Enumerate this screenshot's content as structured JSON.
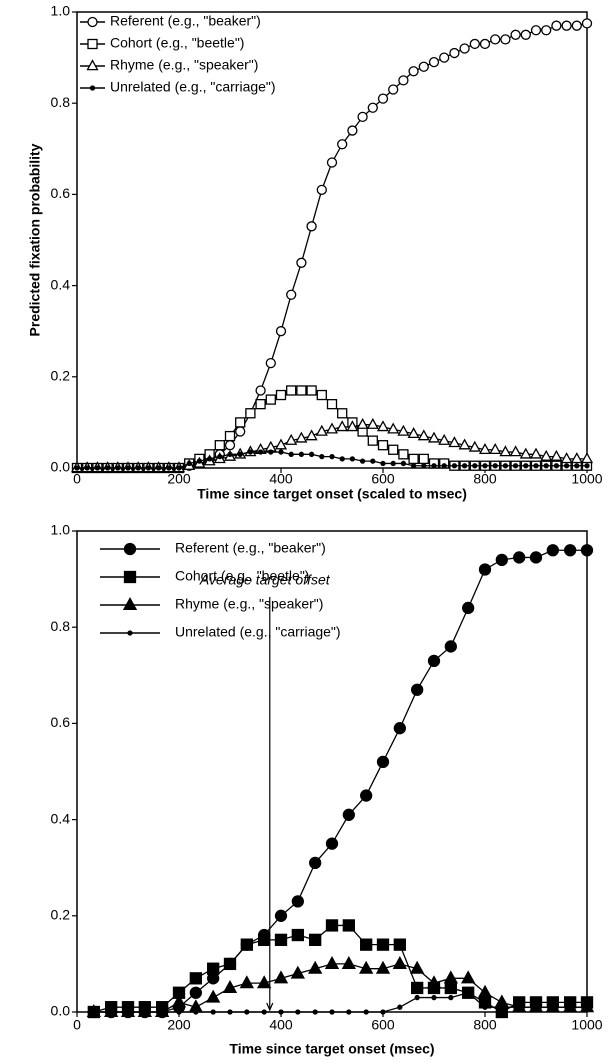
{
  "chart_data": [
    {
      "type": "line",
      "x_label": "Time since target onset (scaled to msec)",
      "y_label": "Predicted fixation probability",
      "marker_fill": "none",
      "xlim": [
        0,
        1000
      ],
      "xticks": [
        0,
        200,
        400,
        600,
        800,
        1000
      ],
      "ylim": [
        0,
        1
      ],
      "yticks": [
        {
          "value": 0,
          "label": "0.0"
        },
        0.2,
        0.4,
        0.6,
        0.8,
        {
          "value": 1,
          "label": "1.0"
        }
      ],
      "legend": "upper left",
      "x": [
        0,
        20,
        40,
        60,
        80,
        100,
        120,
        140,
        160,
        180,
        200,
        220,
        240,
        260,
        280,
        300,
        320,
        340,
        360,
        380,
        400,
        420,
        440,
        460,
        480,
        500,
        520,
        540,
        560,
        580,
        600,
        620,
        640,
        660,
        680,
        700,
        720,
        740,
        760,
        780,
        800,
        820,
        840,
        860,
        880,
        900,
        920,
        940,
        960,
        980,
        1000
      ],
      "series": [
        {
          "name": "Referent (e.g., \"beaker\")",
          "color": "#000000",
          "marker": "circle",
          "values": [
            0,
            0,
            0,
            0,
            0,
            0,
            0,
            0,
            0,
            0,
            0,
            0.005,
            0.01,
            0.02,
            0.03,
            0.05,
            0.08,
            0.12,
            0.17,
            0.23,
            0.3,
            0.38,
            0.45,
            0.53,
            0.61,
            0.67,
            0.71,
            0.74,
            0.77,
            0.79,
            0.81,
            0.83,
            0.85,
            0.87,
            0.88,
            0.89,
            0.9,
            0.91,
            0.92,
            0.93,
            0.93,
            0.94,
            0.94,
            0.95,
            0.95,
            0.96,
            0.96,
            0.97,
            0.97,
            0.97,
            0.975
          ]
        },
        {
          "name": "Cohort (e.g., \"beetle\")",
          "color": "#000000",
          "marker": "square",
          "values": [
            0,
            0,
            0,
            0,
            0,
            0,
            0,
            0,
            0,
            0,
            0,
            0.01,
            0.02,
            0.03,
            0.05,
            0.07,
            0.1,
            0.12,
            0.14,
            0.15,
            0.16,
            0.17,
            0.17,
            0.17,
            0.16,
            0.14,
            0.12,
            0.1,
            0.08,
            0.06,
            0.05,
            0.04,
            0.03,
            0.02,
            0.02,
            0.01,
            0.01,
            0.005,
            0.005,
            0.005,
            0.005,
            0.005,
            0.005,
            0.005,
            0.005,
            0.005,
            0.005,
            0.005,
            0.005,
            0.005,
            0.005
          ]
        },
        {
          "name": "Rhyme (e.g., \"speaker\")",
          "color": "#000000",
          "marker": "triangle",
          "values": [
            0,
            0,
            0,
            0,
            0,
            0,
            0,
            0,
            0,
            0,
            0,
            0.005,
            0.01,
            0.015,
            0.02,
            0.025,
            0.03,
            0.035,
            0.04,
            0.045,
            0.05,
            0.06,
            0.065,
            0.07,
            0.08,
            0.085,
            0.09,
            0.09,
            0.095,
            0.095,
            0.09,
            0.085,
            0.08,
            0.075,
            0.07,
            0.065,
            0.06,
            0.055,
            0.05,
            0.045,
            0.04,
            0.04,
            0.035,
            0.035,
            0.03,
            0.03,
            0.025,
            0.025,
            0.02,
            0.02,
            0.02
          ]
        },
        {
          "name": "Unrelated (e.g., \"carriage\")",
          "color": "#000000",
          "marker": "dot",
          "values": [
            0,
            0,
            0,
            0,
            0,
            0,
            0,
            0,
            0,
            0,
            0,
            0.01,
            0.015,
            0.02,
            0.025,
            0.03,
            0.03,
            0.035,
            0.035,
            0.035,
            0.035,
            0.03,
            0.03,
            0.03,
            0.025,
            0.025,
            0.02,
            0.02,
            0.015,
            0.015,
            0.01,
            0.01,
            0.01,
            0.005,
            0.005,
            0.005,
            0.005,
            0.005,
            0.005,
            0.005,
            0.005,
            0.005,
            0.005,
            0.005,
            0.005,
            0.005,
            0.005,
            0.005,
            0.005,
            0.005,
            0.005
          ]
        }
      ]
    },
    {
      "type": "line",
      "x_label": "Time since target onset (msec)",
      "marker_fill": "#000000",
      "xlim": [
        0,
        1000
      ],
      "xticks": [
        0,
        200,
        400,
        600,
        800,
        1000
      ],
      "ylim": [
        0,
        1
      ],
      "yticks": [
        {
          "value": 0,
          "label": "0.0"
        },
        0.2,
        0.4,
        0.6,
        0.8,
        {
          "value": 1,
          "label": "1.0"
        }
      ],
      "legend": "upper left",
      "annotations": [
        {
          "text": "Average target offset",
          "x": 378
        }
      ],
      "x": [
        33,
        67,
        100,
        133,
        167,
        200,
        233,
        267,
        300,
        333,
        367,
        400,
        433,
        467,
        500,
        533,
        567,
        600,
        633,
        667,
        700,
        733,
        767,
        800,
        833,
        867,
        900,
        933,
        967,
        1000
      ],
      "series": [
        {
          "name": "Referent (e.g., \"beaker\")",
          "color": "#000000",
          "marker": "circle",
          "values": [
            0,
            0,
            0,
            0,
            0,
            0.01,
            0.04,
            0.07,
            0.1,
            0.14,
            0.16,
            0.2,
            0.23,
            0.31,
            0.35,
            0.41,
            0.45,
            0.52,
            0.59,
            0.67,
            0.73,
            0.76,
            0.84,
            0.92,
            0.94,
            0.945,
            0.945,
            0.96,
            0.96,
            0.96
          ]
        },
        {
          "name": "Cohort (e.g., \"beetle\")",
          "color": "#000000",
          "marker": "square",
          "values": [
            0,
            0.01,
            0.01,
            0.01,
            0.01,
            0.04,
            0.07,
            0.09,
            0.1,
            0.14,
            0.15,
            0.15,
            0.16,
            0.15,
            0.18,
            0.18,
            0.14,
            0.14,
            0.14,
            0.05,
            0.05,
            0.05,
            0.04,
            0.02,
            0,
            0.02,
            0.02,
            0.02,
            0.02,
            0.02
          ]
        },
        {
          "name": "Rhyme (e.g., \"speaker\")",
          "color": "#000000",
          "marker": "triangle",
          "values": [
            0,
            0,
            0,
            0,
            0,
            0.02,
            0.01,
            0.03,
            0.05,
            0.06,
            0.06,
            0.07,
            0.08,
            0.09,
            0.1,
            0.1,
            0.09,
            0.09,
            0.1,
            0.09,
            0.06,
            0.07,
            0.07,
            0.04,
            0.02,
            0.01,
            0.01,
            0.01,
            0.01,
            0.01
          ]
        },
        {
          "name": "Unrelated (e.g., \"carriage\")",
          "color": "#000000",
          "marker": "dot",
          "values": [
            0,
            0,
            0,
            0,
            0,
            0,
            0,
            0,
            0,
            0,
            0,
            0,
            0,
            0,
            0,
            0,
            0,
            0,
            0.01,
            0.03,
            0.03,
            0.03,
            0.04,
            0.01,
            0.01,
            0.01,
            0.01,
            0.01,
            0.01,
            0.01
          ]
        }
      ]
    }
  ]
}
